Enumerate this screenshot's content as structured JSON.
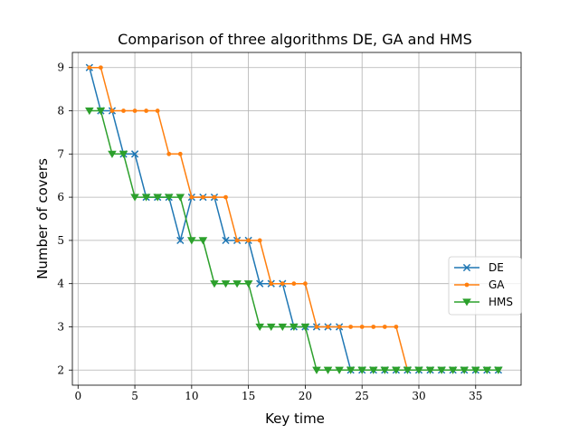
{
  "chart_data": {
    "type": "line",
    "title": "Comparison of three algorithms DE, GA and HMS",
    "xlabel": "Key time",
    "ylabel": "Number of covers",
    "xlim": [
      -0.5,
      39
    ],
    "ylim": [
      1.65,
      9.35
    ],
    "xticks": [
      0,
      5,
      10,
      15,
      20,
      25,
      30,
      35
    ],
    "yticks": [
      2,
      3,
      4,
      5,
      6,
      7,
      8,
      9
    ],
    "grid": true,
    "legend_position": "center-right",
    "series": [
      {
        "name": "DE",
        "color": "#1f77b4",
        "marker": "x",
        "x": [
          1,
          2,
          3,
          4,
          5,
          6,
          7,
          8,
          9,
          10,
          11,
          12,
          13,
          14,
          15,
          16,
          17,
          18,
          19,
          20,
          21,
          22,
          23,
          24,
          25,
          26,
          27,
          28,
          29,
          30,
          31,
          32,
          33,
          34,
          35,
          36,
          37
        ],
        "y": [
          9,
          8,
          8,
          7,
          7,
          6,
          6,
          6,
          5,
          6,
          6,
          6,
          5,
          5,
          5,
          4,
          4,
          4,
          3,
          3,
          3,
          3,
          3,
          2,
          2,
          2,
          2,
          2,
          2,
          2,
          2,
          2,
          2,
          2,
          2,
          2,
          2
        ]
      },
      {
        "name": "GA",
        "color": "#ff7f0e",
        "marker": "dot",
        "x": [
          1,
          2,
          3,
          4,
          5,
          6,
          7,
          8,
          9,
          10,
          11,
          12,
          13,
          14,
          15,
          16,
          17,
          18,
          19,
          20,
          21,
          22,
          23,
          24,
          25,
          26,
          27,
          28,
          29,
          30,
          31,
          32,
          33,
          34,
          35,
          36,
          37
        ],
        "y": [
          9,
          9,
          8,
          8,
          8,
          8,
          8,
          7,
          7,
          6,
          6,
          6,
          6,
          5,
          5,
          5,
          4,
          4,
          4,
          4,
          3,
          3,
          3,
          3,
          3,
          3,
          3,
          3,
          2,
          2,
          2,
          2,
          2,
          2,
          2,
          2,
          2
        ]
      },
      {
        "name": "HMS",
        "color": "#2ca02c",
        "marker": "triangle-down",
        "x": [
          1,
          2,
          3,
          4,
          5,
          6,
          7,
          8,
          9,
          10,
          11,
          12,
          13,
          14,
          15,
          16,
          17,
          18,
          19,
          20,
          21,
          22,
          23,
          24,
          25,
          26,
          27,
          28,
          29,
          30,
          31,
          32,
          33,
          34,
          35,
          36,
          37
        ],
        "y": [
          8,
          8,
          7,
          7,
          6,
          6,
          6,
          6,
          6,
          5,
          5,
          4,
          4,
          4,
          4,
          3,
          3,
          3,
          3,
          3,
          2,
          2,
          2,
          2,
          2,
          2,
          2,
          2,
          2,
          2,
          2,
          2,
          2,
          2,
          2,
          2,
          2
        ]
      }
    ]
  }
}
